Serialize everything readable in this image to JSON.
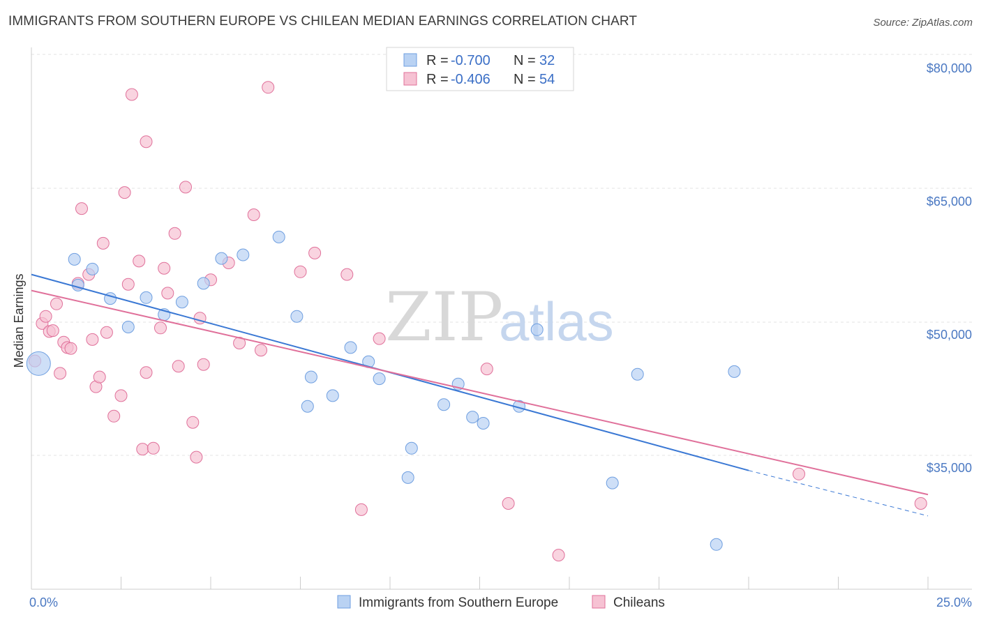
{
  "title": "IMMIGRANTS FROM SOUTHERN EUROPE VS CHILEAN MEDIAN EARNINGS CORRELATION CHART",
  "source": "Source: ZipAtlas.com",
  "watermark": {
    "zip": "ZIP",
    "atlas": "atlas"
  },
  "colors": {
    "blue": "#6f9fe0",
    "blue_fill": "#b9d2f3",
    "pink": "#e0709a",
    "pink_fill": "#f6c2d3",
    "axis_text": "#4a78c2"
  },
  "legend": {
    "rows": [
      {
        "r_label": "R =",
        "r_value": "-0.700",
        "n_label": "N =",
        "n_value": "32"
      },
      {
        "r_label": "R =",
        "r_value": "-0.406",
        "n_label": "N =",
        "n_value": "54"
      }
    ]
  },
  "bottom_legend": [
    "Immigrants from Southern Europe",
    "Chileans"
  ],
  "chart_data": {
    "type": "scatter",
    "title": "IMMIGRANTS FROM SOUTHERN EUROPE VS CHILEAN MEDIAN EARNINGS CORRELATION CHART",
    "xlabel": "",
    "ylabel": "Median Earnings",
    "xlim": [
      0,
      25
    ],
    "ylim": [
      20000,
      83000
    ],
    "x_tick_labels": [
      "0.0%",
      "25.0%"
    ],
    "y_ticks": [
      35000,
      50000,
      65000,
      80000
    ],
    "y_tick_labels": [
      "$35,000",
      "$50,000",
      "$65,000",
      "$80,000"
    ],
    "grid": true,
    "legend_position": "top-center",
    "series": [
      {
        "name": "Immigrants from Southern Europe",
        "color": "#6f9fe0",
        "points": [
          [
            0.2,
            45300
          ],
          [
            1.3,
            54100
          ],
          [
            1.2,
            57000
          ],
          [
            1.7,
            55900
          ],
          [
            2.2,
            52600
          ],
          [
            2.7,
            49400
          ],
          [
            3.2,
            52700
          ],
          [
            3.7,
            50800
          ],
          [
            4.2,
            52200
          ],
          [
            4.8,
            54300
          ],
          [
            5.3,
            57100
          ],
          [
            5.9,
            57500
          ],
          [
            6.9,
            59500
          ],
          [
            7.4,
            50600
          ],
          [
            7.7,
            40500
          ],
          [
            7.8,
            43800
          ],
          [
            8.4,
            41700
          ],
          [
            8.9,
            47100
          ],
          [
            9.4,
            45500
          ],
          [
            9.7,
            43600
          ],
          [
            10.6,
            35800
          ],
          [
            10.5,
            32500
          ],
          [
            11.5,
            40700
          ],
          [
            11.9,
            43000
          ],
          [
            12.3,
            39300
          ],
          [
            12.6,
            38600
          ],
          [
            13.6,
            40500
          ],
          [
            14.1,
            49100
          ],
          [
            16.2,
            31900
          ],
          [
            16.9,
            44100
          ],
          [
            19.1,
            25000
          ],
          [
            19.6,
            44400
          ]
        ],
        "trend": {
          "x": [
            0,
            20
          ],
          "y": [
            55300,
            33300
          ],
          "dashed_to": [
            25,
            28200
          ]
        }
      },
      {
        "name": "Chileans",
        "color": "#e0709a",
        "points": [
          [
            0.1,
            45600
          ],
          [
            0.3,
            49800
          ],
          [
            0.4,
            50600
          ],
          [
            0.5,
            48900
          ],
          [
            0.6,
            49000
          ],
          [
            0.7,
            52000
          ],
          [
            0.8,
            44200
          ],
          [
            0.9,
            47700
          ],
          [
            1.0,
            47100
          ],
          [
            1.1,
            47000
          ],
          [
            1.3,
            54300
          ],
          [
            1.4,
            62700
          ],
          [
            1.6,
            55300
          ],
          [
            1.7,
            48000
          ],
          [
            1.8,
            42700
          ],
          [
            1.9,
            43800
          ],
          [
            2.0,
            58800
          ],
          [
            2.1,
            48800
          ],
          [
            2.3,
            39400
          ],
          [
            2.5,
            41700
          ],
          [
            2.6,
            64500
          ],
          [
            2.7,
            54200
          ],
          [
            2.8,
            75500
          ],
          [
            3.0,
            56800
          ],
          [
            3.1,
            35700
          ],
          [
            3.2,
            70200
          ],
          [
            3.2,
            44300
          ],
          [
            3.4,
            35800
          ],
          [
            3.6,
            49300
          ],
          [
            3.7,
            56000
          ],
          [
            3.8,
            53200
          ],
          [
            4.0,
            59900
          ],
          [
            4.1,
            45000
          ],
          [
            4.3,
            65100
          ],
          [
            4.5,
            38700
          ],
          [
            4.6,
            34800
          ],
          [
            4.7,
            50400
          ],
          [
            4.8,
            45200
          ],
          [
            5.0,
            54700
          ],
          [
            5.5,
            56600
          ],
          [
            5.8,
            47600
          ],
          [
            6.2,
            62000
          ],
          [
            6.4,
            46800
          ],
          [
            6.6,
            76300
          ],
          [
            7.5,
            55600
          ],
          [
            7.9,
            57700
          ],
          [
            8.8,
            55300
          ],
          [
            9.2,
            28900
          ],
          [
            9.7,
            48100
          ],
          [
            12.7,
            44700
          ],
          [
            13.3,
            29600
          ],
          [
            14.7,
            23800
          ],
          [
            21.4,
            32900
          ],
          [
            24.8,
            29600
          ]
        ],
        "trend": {
          "x": [
            0,
            25
          ],
          "y": [
            53500,
            30600
          ]
        }
      }
    ]
  }
}
